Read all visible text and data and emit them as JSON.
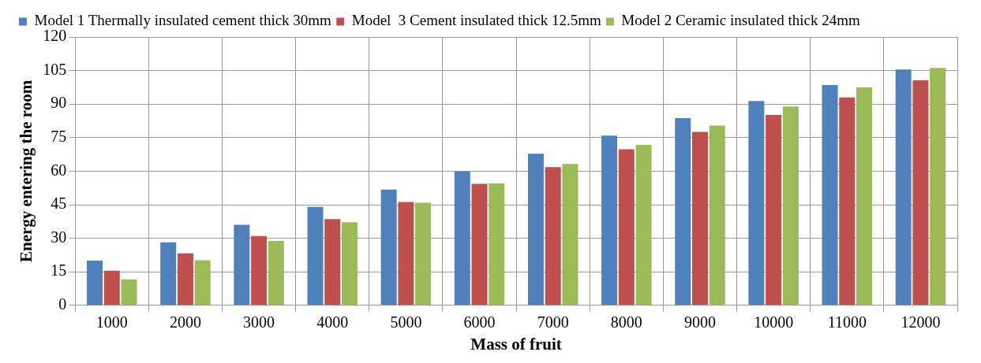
{
  "chart_data": {
    "type": "bar",
    "xlabel": "Mass of fruit",
    "ylabel": "Energy entering the room",
    "categories": [
      "1000",
      "2000",
      "3000",
      "4000",
      "5000",
      "6000",
      "7000",
      "8000",
      "9000",
      "10000",
      "11000",
      "12000"
    ],
    "series": [
      {
        "name": "Model 1 Thermally insulated cement thick 30mm",
        "color": "#4f81bd",
        "values": [
          20,
          28.2,
          36,
          44,
          51.8,
          60,
          67.8,
          75.9,
          83.7,
          91.4,
          98.5,
          105.5
        ]
      },
      {
        "name": "Model  3 Cement insulated thick 12.5mm",
        "color": "#c0504d",
        "values": [
          15.5,
          23.3,
          31,
          38.6,
          46.2,
          54.3,
          61.8,
          69.8,
          77.6,
          85.1,
          93,
          100.6
        ]
      },
      {
        "name": "Model 2 Ceramic insulated thick 24mm",
        "color": "#9bbb59",
        "values": [
          11.6,
          20.2,
          28.8,
          37.2,
          45.9,
          54.5,
          63.2,
          71.8,
          80.4,
          88.9,
          97.5,
          106.2
        ]
      }
    ],
    "ylim": [
      0,
      120
    ],
    "yticks": [
      0,
      15,
      30,
      45,
      60,
      75,
      90,
      105,
      120
    ],
    "grid": true,
    "legend": "top"
  }
}
